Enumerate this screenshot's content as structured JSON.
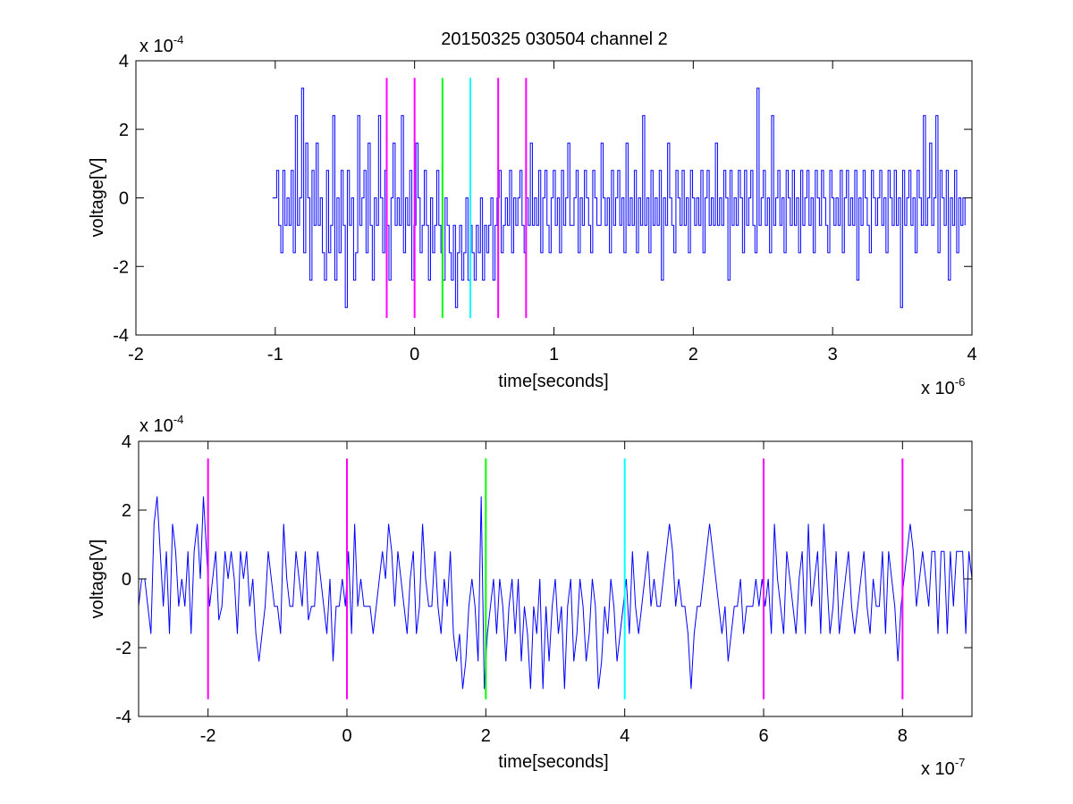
{
  "title": "20150325 030504 channel 2",
  "colors": {
    "trace": "#0000ff",
    "magenta_marker": "#ff00ff",
    "green_marker": "#00ff00",
    "cyan_marker": "#00ffff",
    "axes": "#000000",
    "background": "#ffffff"
  },
  "chart_data": [
    {
      "type": "line",
      "title": "20150325 030504 channel 2",
      "xlabel": "time[seconds]",
      "ylabel": "voltage[V]",
      "x_multiplier": "x 10",
      "x_exponent": "-6",
      "y_multiplier": "x 10",
      "y_exponent": "-4",
      "xlim": [
        -2,
        4
      ],
      "ylim": [
        -4,
        4
      ],
      "xticks": [
        -2,
        -1,
        0,
        1,
        2,
        3,
        4
      ],
      "yticks": [
        -4,
        -2,
        0,
        2,
        4
      ],
      "xtick_labels": [
        "-2",
        "-1",
        "0",
        "1",
        "2",
        "3",
        "4"
      ],
      "ytick_labels": [
        "-4",
        "-2",
        "0",
        "2",
        "4"
      ],
      "grid": false,
      "series": [
        {
          "style": "step",
          "x_start": -1.02,
          "x_end": 3.95,
          "quantum": 0.8,
          "values": [
            0,
            0,
            0.8,
            -0.8,
            -1.6,
            0.8,
            -0.8,
            0,
            -0.8,
            0.8,
            -1.6,
            2.4,
            -0.8,
            0,
            3.2,
            -1.6,
            1.6,
            0,
            -2.4,
            0.8,
            -0.8,
            1.6,
            -0.8,
            0,
            -1.6,
            -2.4,
            0.8,
            -1.6,
            -0.8,
            2.4,
            -2.4,
            0,
            -1.6,
            0.8,
            -0.8,
            -3.2,
            0.8,
            -0.8,
            0,
            -2.4,
            -1.6,
            2.4,
            -0.8,
            0,
            0.8,
            -1.6,
            1.6,
            -0.8,
            -2.4,
            0,
            -0.8,
            2.4,
            0,
            -1.6,
            0.8,
            -0.8,
            -2.4,
            0,
            1.6,
            -0.8,
            0,
            -0.8,
            2.4,
            -1.6,
            0,
            -0.8,
            0.8,
            -2.4,
            -0.8,
            1.6,
            0,
            -1.6,
            -0.8,
            0.8,
            -0.8,
            -2.4,
            0,
            -1.6,
            -0.8,
            0.8,
            -0.8,
            -1.6,
            -2.4,
            0,
            -0.8,
            -1.6,
            -2.4,
            -0.8,
            -3.2,
            -1.6,
            -0.8,
            -2.4,
            -1.6,
            0,
            -2.4,
            -0.8,
            -1.6,
            -2.4,
            -0.8,
            -1.6,
            0,
            -2.4,
            -0.8,
            -1.6,
            -0.8,
            0,
            -2.4,
            -0.8,
            0,
            0.8,
            -1.6,
            -0.8,
            0,
            -0.8,
            0.8,
            -1.6,
            0,
            -0.8,
            0,
            0.8,
            -0.8,
            -1.6,
            0,
            -0.8,
            1.6,
            -0.8,
            0,
            -0.8,
            0.8,
            -1.6,
            0,
            0.8,
            -0.8,
            -1.6,
            0,
            0.8,
            -0.8,
            0,
            -1.6,
            0.8,
            -0.8,
            0,
            1.6,
            -0.8,
            -0.8,
            0,
            0.8,
            -1.6,
            0,
            -0.8,
            0.8,
            0,
            -0.8,
            -1.6,
            0.8,
            0,
            -0.8,
            -0.8,
            1.6,
            0,
            -0.8,
            0,
            -1.6,
            0.8,
            -0.8,
            0,
            0.8,
            -0.8,
            0,
            -1.6,
            1.6,
            -0.8,
            0,
            -0.8,
            0.8,
            -1.6,
            0,
            -0.8,
            2.4,
            -0.8,
            0,
            -1.6,
            0.8,
            -0.8,
            0,
            -0.8,
            0.8,
            -2.4,
            0,
            -0.8,
            1.6,
            0,
            -0.8,
            -1.6,
            0.8,
            0,
            -0.8,
            0.8,
            -0.8,
            0,
            -1.6,
            0.8,
            0,
            -0.8,
            0,
            -0.8,
            0.8,
            -1.6,
            0,
            0.8,
            -0.8,
            0,
            -0.8,
            1.6,
            -0.8,
            0,
            -0.8,
            0.8,
            0,
            -2.4,
            0.8,
            -0.8,
            0,
            -0.8,
            0.8,
            0,
            -1.6,
            0.8,
            -0.8,
            0,
            0.8,
            -0.8,
            -1.6,
            3.2,
            -0.8,
            0,
            0.8,
            -0.8,
            0,
            -1.6,
            2.4,
            -0.8,
            0,
            0.8,
            -0.8,
            0,
            -1.6,
            0.8,
            0,
            -0.8,
            0.8,
            -0.8,
            0,
            -1.6,
            0.8,
            -0.8,
            0,
            0.8,
            -0.8,
            0,
            -1.6,
            0.8,
            0,
            -0.8,
            0.8,
            0,
            -0.8,
            -1.6,
            0.8,
            0,
            -0.8,
            0,
            -0.8,
            0.8,
            -1.6,
            0,
            0.8,
            -0.8,
            0,
            -0.8,
            0.8,
            -2.4,
            0,
            -0.8,
            0.8,
            0,
            -0.8,
            -1.6,
            0.8,
            0,
            -0.8,
            0,
            0.8,
            -0.8,
            0,
            -1.6,
            0.8,
            0,
            -0.8,
            0.8,
            -0.8,
            0,
            -3.2,
            0.8,
            -0.8,
            0,
            0.8,
            -0.8,
            0,
            -1.6,
            0.8,
            0,
            -0.8,
            2.4,
            -0.8,
            0,
            1.6,
            -0.8,
            0,
            2.4,
            -1.6,
            0.8,
            0,
            -0.8,
            0.8,
            -2.4,
            0,
            -0.8,
            0.8,
            -1.6,
            0,
            -0.8,
            0,
            -0.8
          ]
        }
      ],
      "markers": [
        {
          "x": -0.2,
          "color": "magenta",
          "y_from": -3.5,
          "y_to": 3.5
        },
        {
          "x": 0,
          "color": "magenta",
          "y_from": -3.5,
          "y_to": 3.5
        },
        {
          "x": 0.2,
          "color": "green",
          "y_from": -3.5,
          "y_to": 3.5
        },
        {
          "x": 0.4,
          "color": "cyan",
          "y_from": -3.5,
          "y_to": 3.5
        },
        {
          "x": 0.6,
          "color": "magenta",
          "y_from": -3.5,
          "y_to": 3.5
        },
        {
          "x": 0.8,
          "color": "magenta",
          "y_from": -3.5,
          "y_to": 3.5
        }
      ]
    },
    {
      "type": "line",
      "title": "",
      "xlabel": "time[seconds]",
      "ylabel": "voltage[V]",
      "x_multiplier": "x 10",
      "x_exponent": "-7",
      "y_multiplier": "x 10",
      "y_exponent": "-4",
      "xlim": [
        -3,
        9
      ],
      "ylim": [
        -4,
        4
      ],
      "xticks": [
        -2,
        0,
        2,
        4,
        6,
        8
      ],
      "yticks": [
        -4,
        -2,
        0,
        2,
        4
      ],
      "xtick_labels": [
        "-2",
        "0",
        "2",
        "4",
        "6",
        "8"
      ],
      "ytick_labels": [
        "-4",
        "-2",
        "0",
        "2",
        "4"
      ],
      "grid": false,
      "series": [
        {
          "style": "line",
          "x_start": -3,
          "x_end": 9,
          "values": [
            -0.8,
            0,
            0,
            -0.8,
            -1.6,
            1.6,
            2.4,
            0.8,
            -0.8,
            0.8,
            -1.6,
            1.6,
            0.8,
            -0.8,
            0,
            -0.8,
            0.8,
            -1.6,
            0.8,
            1.6,
            0,
            2.4,
            0.8,
            -0.8,
            0,
            0.8,
            -1.2,
            -0.8,
            0.8,
            0,
            0.8,
            0,
            -1.6,
            0.8,
            0,
            0.8,
            -0.8,
            0,
            -1.6,
            -2.4,
            -1.6,
            -0.8,
            0.8,
            0,
            -0.8,
            -0.8,
            -1.6,
            1.6,
            0,
            -0.8,
            -0.8,
            0.8,
            0,
            -0.8,
            0.8,
            -1.2,
            -0.8,
            -0.8,
            0.8,
            0,
            -0.8,
            -1.6,
            0,
            -2.4,
            -0.8,
            -0.8,
            0,
            -0.8,
            0.8,
            -1.6,
            1.6,
            -0.8,
            0,
            -0.8,
            -0.8,
            -0.8,
            -1.6,
            -0.8,
            0,
            0.8,
            0,
            1.6,
            0.8,
            -0.8,
            0.8,
            0,
            -0.8,
            -1.6,
            0,
            0.8,
            -1.6,
            -0.8,
            1.6,
            0,
            -0.8,
            -0.8,
            0.8,
            -0.8,
            -1.6,
            0,
            -0.8,
            0.8,
            -1.6,
            -2.4,
            -1.6,
            -3.2,
            -2.4,
            -0.8,
            0,
            -0.8,
            -2.4,
            2.4,
            -3.2,
            -1.6,
            -0.8,
            0,
            -1.6,
            0,
            -0.8,
            -2.4,
            -0.8,
            0,
            -1.6,
            0,
            -2.4,
            -0.8,
            -1.6,
            -3.2,
            -0.8,
            -1.6,
            0,
            -3.2,
            -0.8,
            -2.4,
            -0.8,
            0,
            -1.6,
            -0.8,
            -3.2,
            -0.8,
            0,
            -2.4,
            -1.6,
            0,
            -0.8,
            -2.4,
            -1.6,
            0,
            -0.8,
            -3.2,
            -2.4,
            -0.8,
            -1.6,
            0,
            -0.8,
            -2.4,
            -1.6,
            -0.8,
            0,
            -1.6,
            0.8,
            -0.8,
            -1.6,
            -0.8,
            0,
            0.8,
            -0.8,
            0,
            -0.8,
            -0.8,
            0,
            0.8,
            1.6,
            0.8,
            -0.8,
            0,
            -0.8,
            -0.8,
            -1.6,
            -3.2,
            -1.6,
            -0.8,
            -0.8,
            0,
            0.8,
            1.6,
            0.8,
            0,
            -0.8,
            -1.6,
            -0.8,
            -2.4,
            -1.6,
            -0.8,
            -0.8,
            0,
            -1.6,
            -0.8,
            -0.8,
            -0.8,
            0,
            -0.8,
            0,
            -0.8,
            0,
            -1.6,
            1.6,
            0,
            -0.8,
            -1.6,
            0.8,
            0,
            -0.8,
            -1.6,
            0,
            0.8,
            -1.6,
            1.6,
            -0.8,
            0,
            0.8,
            -1.6,
            1.6,
            0,
            -1.6,
            -0.8,
            0.8,
            -1.6,
            -0.8,
            0,
            0.8,
            -0.8,
            -1.6,
            -0.8,
            0,
            0.8,
            -0.8,
            -1.6,
            0,
            -0.8,
            -0.8,
            0.8,
            -1.6,
            0.8,
            0,
            -0.8,
            -2.4,
            -0.8,
            0,
            0.8,
            1.6,
            0.8,
            -0.8,
            0,
            0.8,
            0,
            -0.8,
            0.8,
            0.8,
            -1.6,
            0.8,
            0.8,
            -1.6,
            0.8,
            -0.8,
            0.8,
            0.8,
            0.8,
            -1.6,
            0.8,
            0
          ]
        }
      ],
      "markers": [
        {
          "x": -2,
          "color": "magenta",
          "y_from": -3.5,
          "y_to": 3.5
        },
        {
          "x": 0,
          "color": "magenta",
          "y_from": -3.5,
          "y_to": 3.5
        },
        {
          "x": 2,
          "color": "green",
          "y_from": -3.5,
          "y_to": 3.5
        },
        {
          "x": 4,
          "color": "cyan",
          "y_from": -3.5,
          "y_to": 3.5
        },
        {
          "x": 6,
          "color": "magenta",
          "y_from": -3.5,
          "y_to": 3.5
        },
        {
          "x": 8,
          "color": "magenta",
          "y_from": -3.5,
          "y_to": 3.5
        }
      ]
    }
  ]
}
